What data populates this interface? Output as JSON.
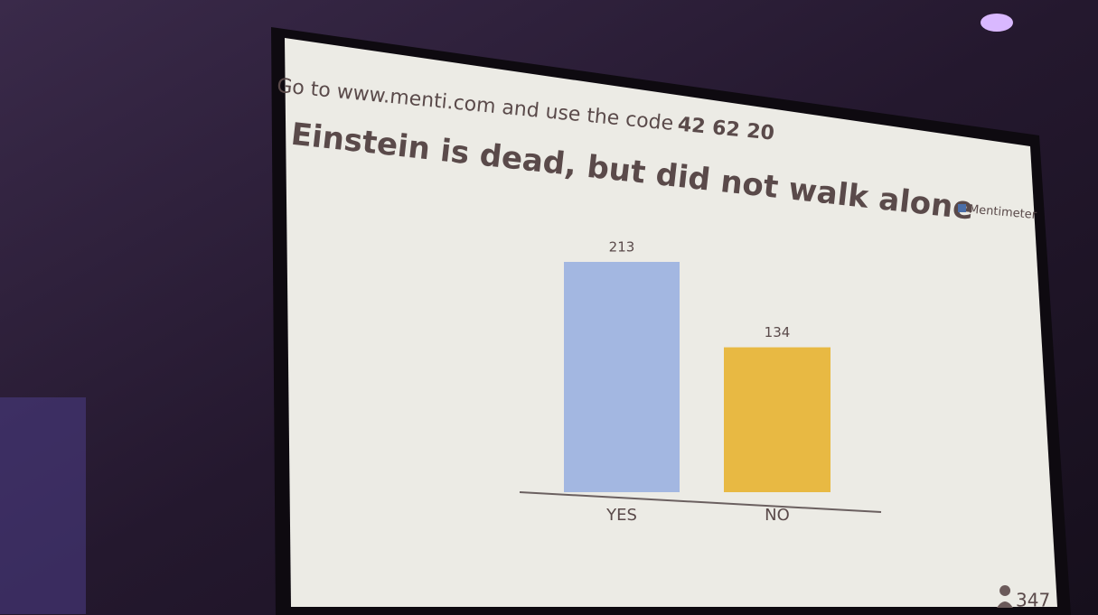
{
  "instruction": "Go to www.menti.com and use the code",
  "code": "42 62 20",
  "brand": "Mentimeter",
  "participants": 347,
  "chart_data": {
    "type": "bar",
    "title": "Einstein is dead, but did not walk alone",
    "categories": [
      "YES",
      "NO"
    ],
    "series": [
      {
        "values": [
          213,
          134
        ],
        "colors": [
          "#a3b7e1",
          "#e8b943"
        ]
      }
    ]
  }
}
